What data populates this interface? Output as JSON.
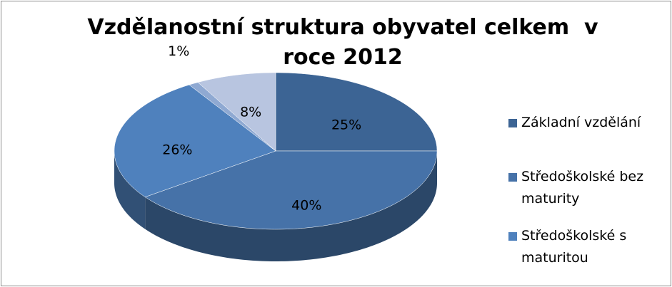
{
  "chart_data": {
    "type": "pie3d",
    "title": "Vzdělanostní struktura obyvatel celkem  v roce 2012",
    "categories": [
      "Základní vzdělání",
      "Středoškolské bez maturity",
      "Středoškolské s maturitou",
      null,
      null
    ],
    "values": [
      25,
      40,
      26,
      1,
      8
    ],
    "value_labels": [
      "25%",
      "40%",
      "26%",
      "1%",
      "8%"
    ],
    "colors": [
      "#3c6494",
      "#4672a8",
      "#4f81bd",
      "#8fa9d2",
      "#b8c5e0"
    ],
    "legend": "right"
  }
}
